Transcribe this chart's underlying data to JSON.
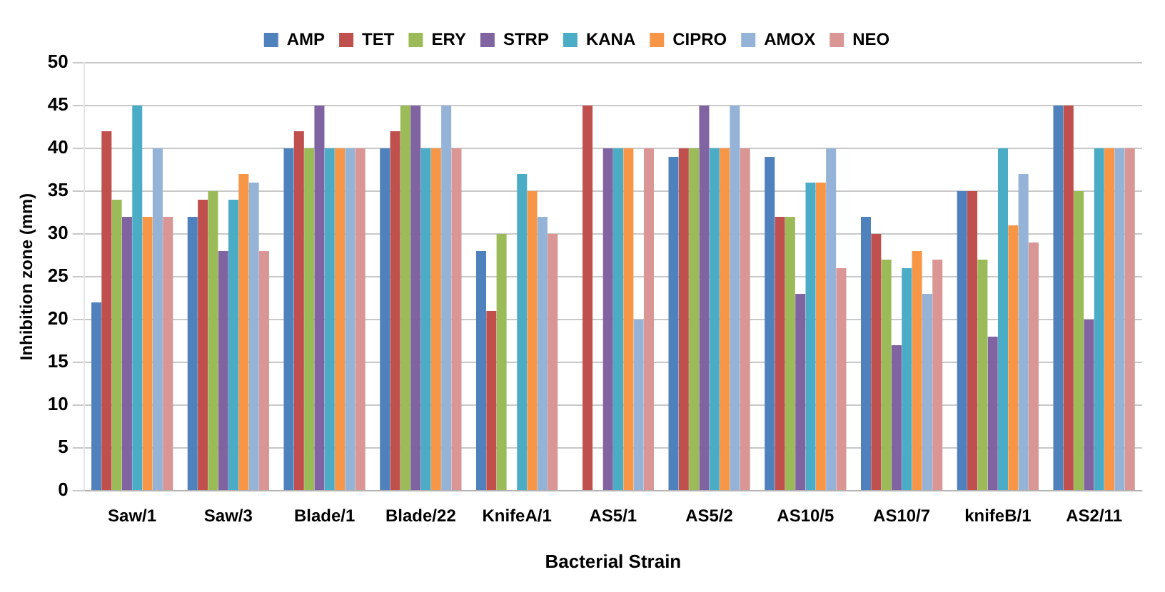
{
  "chart_data": {
    "type": "bar",
    "xlabel": "Bacterial Strain",
    "ylabel": "Inhibition zone (mm)",
    "categories": [
      "Saw/1",
      "Saw/3",
      "Blade/1",
      "Blade/22",
      "KnifeA/1",
      "AS5/1",
      "AS5/2",
      "AS10/5",
      "AS10/7",
      "knifeB/1",
      "AS2/11"
    ],
    "series": [
      {
        "name": "AMP",
        "color": "#4f81bd",
        "values": [
          22,
          32,
          40,
          40,
          28,
          null,
          39,
          39,
          32,
          35,
          45
        ]
      },
      {
        "name": "TET",
        "color": "#c0504d",
        "values": [
          42,
          34,
          42,
          42,
          21,
          45,
          40,
          32,
          30,
          35,
          45
        ]
      },
      {
        "name": "ERY",
        "color": "#9bbb59",
        "values": [
          34,
          35,
          40,
          45,
          30,
          null,
          40,
          32,
          27,
          27,
          35
        ]
      },
      {
        "name": "STRP",
        "color": "#8064a2",
        "values": [
          32,
          28,
          45,
          45,
          null,
          40,
          45,
          23,
          17,
          18,
          20
        ]
      },
      {
        "name": "KANA",
        "color": "#4bacc6",
        "values": [
          45,
          34,
          40,
          40,
          37,
          40,
          40,
          36,
          26,
          40,
          40
        ]
      },
      {
        "name": "CIPRO",
        "color": "#f79646",
        "values": [
          32,
          37,
          40,
          40,
          35,
          40,
          40,
          36,
          28,
          31,
          40
        ]
      },
      {
        "name": "AMOX",
        "color": "#95b3d7",
        "values": [
          40,
          36,
          40,
          45,
          32,
          20,
          45,
          40,
          23,
          37,
          40
        ]
      },
      {
        "name": "NEO",
        "color": "#d99694",
        "values": [
          32,
          28,
          40,
          40,
          30,
          40,
          40,
          26,
          27,
          29,
          40
        ]
      }
    ],
    "ylim": [
      0,
      50
    ],
    "yticks": [
      0,
      5,
      10,
      15,
      20,
      25,
      30,
      35,
      40,
      45,
      50
    ],
    "grid": "y",
    "legend": "top"
  }
}
